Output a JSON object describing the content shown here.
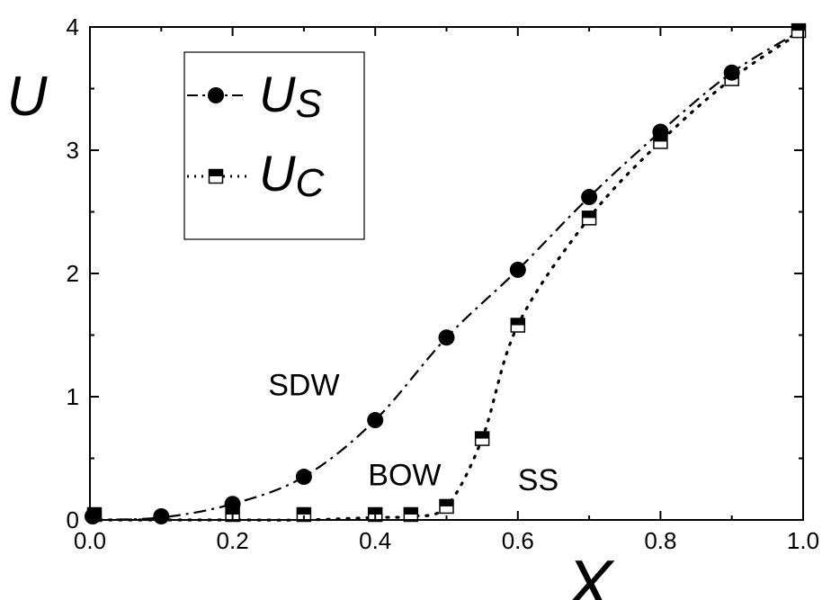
{
  "chart_data": {
    "type": "scatter",
    "xlabel": "X",
    "ylabel": "U",
    "xlim": [
      0.0,
      1.0
    ],
    "ylim": [
      0,
      4
    ],
    "x_ticks": [
      "0.0",
      "0.2",
      "0.4",
      "0.6",
      "0.8",
      "1.0"
    ],
    "y_ticks": [
      "0",
      "1",
      "2",
      "3",
      "4"
    ],
    "grid": false,
    "legend_position": "top-left",
    "series": [
      {
        "name": "U_S",
        "name_main": "U",
        "name_sub": "S",
        "marker": "filled-circle",
        "line_style": "dash-dot",
        "x": [
          0.0,
          0.1,
          0.2,
          0.3,
          0.4,
          0.5,
          0.6,
          0.7,
          0.8,
          0.9
        ],
        "y": [
          0.0,
          0.02,
          0.13,
          0.35,
          0.81,
          1.48,
          2.03,
          2.62,
          3.15,
          3.63
        ]
      },
      {
        "name": "U_C",
        "name_main": "U",
        "name_sub": "C",
        "marker": "half-filled-square",
        "line_style": "dotted",
        "x": [
          0.0,
          0.2,
          0.3,
          0.4,
          0.45,
          0.5,
          0.55,
          0.6,
          0.7,
          0.8,
          0.9,
          1.0
        ],
        "y": [
          0.0,
          0.0,
          0.0,
          0.02,
          0.03,
          0.11,
          0.66,
          1.58,
          2.45,
          3.07,
          3.58,
          3.97
        ]
      }
    ],
    "annotations": [
      {
        "text": "SDW",
        "x": 0.25,
        "y": 1.1
      },
      {
        "text": "BOW",
        "x": 0.39,
        "y": 0.37
      },
      {
        "text": "SS",
        "x": 0.6,
        "y": 0.33
      }
    ]
  }
}
